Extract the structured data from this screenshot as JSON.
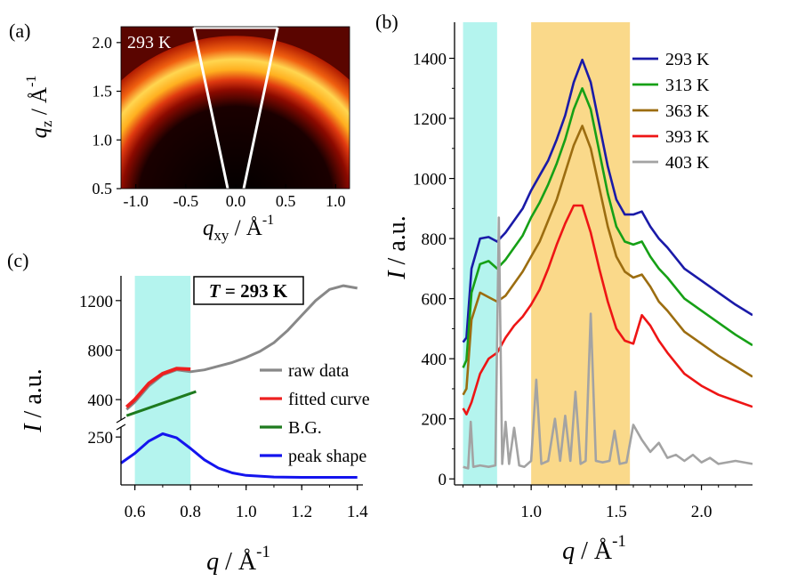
{
  "colors": {
    "s293": "#1a1aa8",
    "s313": "#16a016",
    "s363": "#9c6d10",
    "s393": "#ee1515",
    "s403": "#a3a3a3",
    "cyan": "#b4f4ee",
    "orange": "#fad98a",
    "raw": "#888888",
    "fit": "#ee2020",
    "bg": "#1e7a1e",
    "peak": "#1414ee"
  },
  "chart_data": [
    {
      "id": "a",
      "panel_label": "(a)",
      "type": "heatmap",
      "annotation": "293 K",
      "xlabel_main": "q",
      "xlabel_sub": "xy",
      "xlabel_unit": " / Å",
      "xlabel_exp": "-1",
      "ylabel_main": "q",
      "ylabel_sub": "z",
      "ylabel_unit": " / Å",
      "ylabel_exp": "-1",
      "xlim": [
        -1.3,
        1.3
      ],
      "ylim": [
        0.5,
        2.3
      ],
      "xticks": [
        -1.0,
        -0.5,
        0.0,
        0.5,
        1.0
      ],
      "xtick_labels": [
        "-1.0",
        "-0.5",
        "0.0",
        "0.5",
        "1.0"
      ],
      "yticks": [
        0.5,
        1.0,
        1.5,
        2.0
      ],
      "ytick_labels": [
        "0.5",
        "1.0",
        "1.5",
        "2.0"
      ],
      "ring_q": 1.3,
      "sector": {
        "top_halfwidth": 0.42,
        "bottom_halfwidth": 0.08
      }
    },
    {
      "id": "b",
      "panel_label": "(b)",
      "type": "line",
      "xlabel_main": "q",
      "xlabel_unit": " / Å",
      "xlabel_exp": "-1",
      "ylabel_main": "I",
      "ylabel_unit": " / a.u.",
      "xlim": [
        0.55,
        2.3
      ],
      "ylim": [
        -20,
        1520
      ],
      "xticks": [
        1.0,
        1.5,
        2.0
      ],
      "xtick_labels": [
        "1.0",
        "1.5",
        "2.0"
      ],
      "yticks": [
        0,
        200,
        400,
        600,
        800,
        1000,
        1200,
        1400
      ],
      "ytick_labels": [
        "0",
        "200",
        "400",
        "600",
        "800",
        "1000",
        "1200",
        "1400"
      ],
      "shaded_regions": [
        {
          "x0": 0.6,
          "x1": 0.8,
          "color_key": "cyan"
        },
        {
          "x0": 1.0,
          "x1": 1.58,
          "color_key": "orange"
        }
      ],
      "legend_position": "top-right",
      "series": [
        {
          "name": "293 K",
          "color_key": "s293",
          "x": [
            0.6,
            0.62,
            0.65,
            0.7,
            0.75,
            0.8,
            0.85,
            0.9,
            0.95,
            1.0,
            1.05,
            1.1,
            1.15,
            1.2,
            1.25,
            1.3,
            1.35,
            1.4,
            1.45,
            1.5,
            1.55,
            1.6,
            1.65,
            1.7,
            1.75,
            1.8,
            1.9,
            2.0,
            2.1,
            2.2,
            2.3
          ],
          "y": [
            455,
            470,
            700,
            800,
            805,
            790,
            820,
            860,
            900,
            960,
            1010,
            1060,
            1130,
            1210,
            1320,
            1395,
            1320,
            1180,
            1040,
            930,
            880,
            880,
            890,
            840,
            800,
            770,
            700,
            660,
            620,
            580,
            545
          ]
        },
        {
          "name": "313 K",
          "color_key": "s313",
          "x": [
            0.6,
            0.62,
            0.65,
            0.7,
            0.75,
            0.8,
            0.85,
            0.9,
            0.95,
            1.0,
            1.05,
            1.1,
            1.15,
            1.2,
            1.25,
            1.3,
            1.35,
            1.4,
            1.45,
            1.5,
            1.55,
            1.6,
            1.65,
            1.7,
            1.75,
            1.8,
            1.9,
            2.0,
            2.1,
            2.2,
            2.3
          ],
          "y": [
            370,
            395,
            620,
            715,
            725,
            700,
            730,
            770,
            810,
            870,
            920,
            980,
            1050,
            1130,
            1230,
            1300,
            1230,
            1090,
            950,
            840,
            790,
            780,
            790,
            740,
            700,
            670,
            600,
            560,
            520,
            480,
            445
          ]
        },
        {
          "name": "363 K",
          "color_key": "s363",
          "x": [
            0.6,
            0.62,
            0.65,
            0.7,
            0.75,
            0.8,
            0.85,
            0.9,
            0.95,
            1.0,
            1.05,
            1.1,
            1.15,
            1.2,
            1.25,
            1.3,
            1.35,
            1.4,
            1.45,
            1.5,
            1.55,
            1.6,
            1.65,
            1.7,
            1.75,
            1.8,
            1.9,
            2.0,
            2.1,
            2.2,
            2.3
          ],
          "y": [
            280,
            300,
            530,
            620,
            605,
            590,
            610,
            650,
            690,
            740,
            790,
            860,
            930,
            1020,
            1110,
            1175,
            1100,
            970,
            840,
            740,
            690,
            670,
            680,
            640,
            590,
            560,
            490,
            450,
            410,
            375,
            340
          ]
        },
        {
          "name": "393 K",
          "color_key": "s393",
          "x": [
            0.6,
            0.62,
            0.65,
            0.7,
            0.75,
            0.8,
            0.85,
            0.9,
            0.95,
            1.0,
            1.05,
            1.1,
            1.15,
            1.2,
            1.25,
            1.3,
            1.35,
            1.4,
            1.45,
            1.5,
            1.55,
            1.6,
            1.65,
            1.7,
            1.75,
            1.8,
            1.9,
            2.0,
            2.1,
            2.2,
            2.3
          ],
          "y": [
            235,
            215,
            255,
            350,
            400,
            420,
            470,
            510,
            540,
            580,
            630,
            700,
            780,
            850,
            910,
            910,
            820,
            700,
            590,
            500,
            460,
            450,
            545,
            510,
            460,
            420,
            350,
            310,
            280,
            260,
            240
          ]
        },
        {
          "name": "403 K",
          "color_key": "s403",
          "x": [
            0.6,
            0.63,
            0.645,
            0.66,
            0.7,
            0.75,
            0.79,
            0.81,
            0.83,
            0.85,
            0.87,
            0.9,
            0.93,
            0.96,
            1.0,
            1.03,
            1.06,
            1.1,
            1.14,
            1.17,
            1.2,
            1.23,
            1.26,
            1.29,
            1.32,
            1.35,
            1.38,
            1.42,
            1.46,
            1.49,
            1.52,
            1.56,
            1.6,
            1.65,
            1.7,
            1.75,
            1.8,
            1.85,
            1.9,
            1.95,
            2.0,
            2.05,
            2.1,
            2.2,
            2.3
          ],
          "y": [
            40,
            35,
            190,
            40,
            45,
            40,
            45,
            870,
            50,
            190,
            50,
            170,
            45,
            40,
            60,
            330,
            50,
            60,
            200,
            60,
            210,
            60,
            290,
            50,
            60,
            550,
            60,
            55,
            60,
            160,
            50,
            55,
            180,
            130,
            90,
            120,
            70,
            80,
            60,
            80,
            55,
            70,
            50,
            60,
            50
          ]
        }
      ]
    },
    {
      "id": "c",
      "panel_label": "(c)",
      "type": "line",
      "broken_axis": true,
      "annotation": "T = 293 K",
      "annotation_italic": "T",
      "annotation_rest": " = 293 K",
      "xlabel_main": "q",
      "xlabel_unit": " / Å",
      "xlabel_exp": "-1",
      "ylabel_main": "I",
      "ylabel_unit": " / a.u.",
      "xlim": [
        0.55,
        1.42
      ],
      "xticks": [
        0.6,
        0.8,
        1.0,
        1.2,
        1.4
      ],
      "xtick_labels": [
        "0.6",
        "0.8",
        "1.0",
        "1.2",
        "1.4"
      ],
      "upper_ylim": [
        250,
        1400
      ],
      "upper_yticks": [
        400,
        800,
        1200
      ],
      "upper_ytick_labels": [
        "400",
        "800",
        "1200"
      ],
      "lower_ylim": [
        0,
        300
      ],
      "lower_yticks": [
        250
      ],
      "lower_ytick_labels": [
        "250"
      ],
      "shaded_region": {
        "x0": 0.6,
        "x1": 0.8,
        "color_key": "cyan"
      },
      "legend_position": "center-right",
      "series": [
        {
          "name": "raw data",
          "color_key": "raw",
          "axis": "upper",
          "x": [
            0.57,
            0.6,
            0.65,
            0.7,
            0.75,
            0.8,
            0.85,
            0.9,
            0.95,
            1.0,
            1.05,
            1.1,
            1.15,
            1.2,
            1.25,
            1.3,
            1.35,
            1.4
          ],
          "y": [
            320,
            380,
            510,
            600,
            640,
            625,
            640,
            670,
            700,
            740,
            790,
            860,
            960,
            1080,
            1200,
            1290,
            1320,
            1300
          ]
        },
        {
          "name": "fitted curve",
          "color_key": "fit",
          "axis": "upper",
          "x": [
            0.57,
            0.6,
            0.65,
            0.7,
            0.75,
            0.8
          ],
          "y": [
            340,
            400,
            530,
            610,
            650,
            645
          ]
        },
        {
          "name": "B.G.",
          "color_key": "bg",
          "axis": "upper",
          "x": [
            0.57,
            0.82
          ],
          "y": [
            270,
            465
          ]
        },
        {
          "name": "peak shape",
          "color_key": "peak",
          "axis": "lower",
          "x": [
            0.55,
            0.6,
            0.65,
            0.7,
            0.75,
            0.8,
            0.85,
            0.9,
            0.95,
            1.0,
            1.1,
            1.2,
            1.3,
            1.4
          ],
          "y": [
            90,
            150,
            225,
            270,
            245,
            180,
            110,
            60,
            30,
            15,
            5,
            3,
            3,
            3
          ]
        }
      ]
    }
  ]
}
